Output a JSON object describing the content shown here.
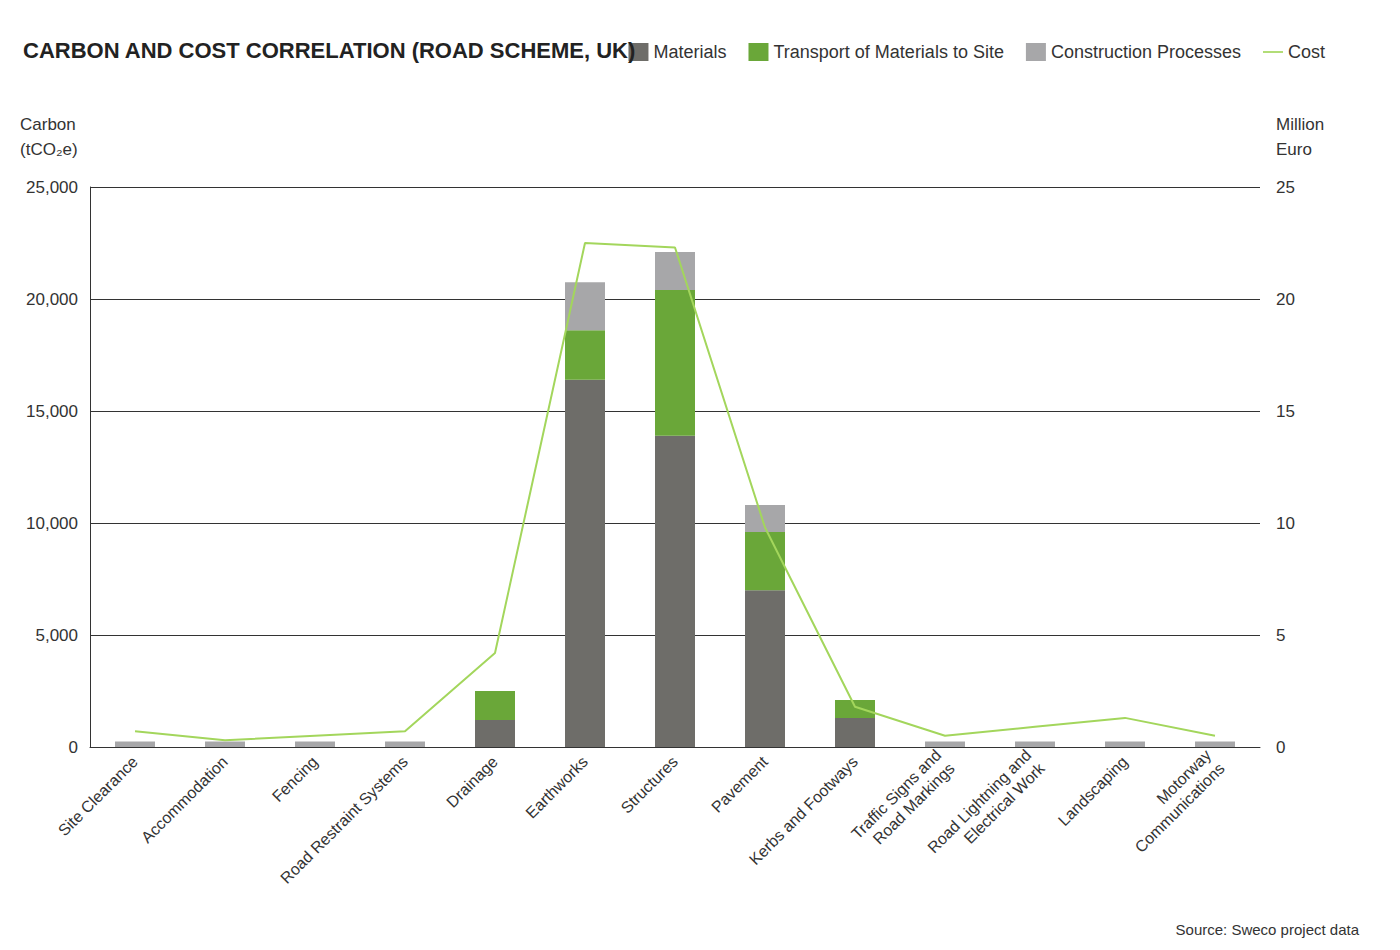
{
  "chart_data": {
    "type": "bar",
    "title": "CARBON AND COST CORRELATION (ROAD SCHEME, UK)",
    "y_label": "Carbon\n(tCO₂e)",
    "y2_label": "Million\nEuro",
    "source": "Source: Sweco project data",
    "categories": [
      "Site Clearance",
      "Accommodation",
      "Fencing",
      "Road Restraint Systems",
      "Drainage",
      "Earthworks",
      "Structures",
      "Pavement",
      "Kerbs and Footways",
      "Traffic Signs and\nRoad Markings",
      "Road Lightning and\nElectrical Work",
      "Landscaping",
      "Motorway\nCommunications"
    ],
    "stacked": true,
    "grid": true,
    "legend": "top-right",
    "series": [
      {
        "name": "Materials",
        "type": "bar",
        "color": "#6e6d69",
        "values": [
          0,
          0,
          0,
          0,
          1200,
          16400,
          13900,
          7000,
          1300,
          0,
          0,
          0,
          0
        ]
      },
      {
        "name": "Transport of Materials to Site",
        "type": "bar",
        "color": "#6aa739",
        "values": [
          0,
          0,
          0,
          0,
          1300,
          2200,
          6500,
          2600,
          800,
          0,
          0,
          0,
          0
        ]
      },
      {
        "name": "Construction Processes",
        "type": "bar",
        "color": "#a7a7a9",
        "values": [
          250,
          250,
          250,
          250,
          0,
          2150,
          1700,
          1200,
          0,
          250,
          250,
          250,
          250
        ]
      },
      {
        "name": "Cost",
        "type": "line",
        "axis": "y2",
        "color": "#a3d65c",
        "values": [
          0.7,
          0.3,
          0.5,
          0.7,
          4.2,
          22.5,
          22.3,
          9.8,
          1.8,
          0.5,
          0.9,
          1.3,
          0.5
        ]
      }
    ],
    "ylim": [
      0,
      25000
    ],
    "yticks": [
      0,
      {
        "value": 5000,
        "label": "5,000"
      },
      {
        "value": 10000,
        "label": "10,000"
      },
      {
        "value": 15000,
        "label": "15,000"
      },
      {
        "value": 20000,
        "label": "20,000"
      },
      {
        "value": 25000,
        "label": "25,000"
      }
    ],
    "y2lim": [
      0,
      25
    ],
    "y2ticks": [
      0,
      5,
      10,
      15,
      20,
      25
    ]
  }
}
